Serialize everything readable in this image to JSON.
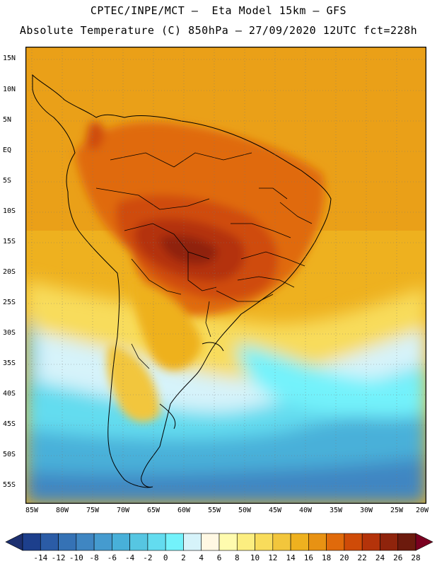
{
  "header": {
    "line1": "CPTEC/INPE/MCT –  Eta Model 15km – GFS",
    "line2": "Absolute Temperature (C) 850hPa – 27/09/2020 12UTC fct=228h"
  },
  "map": {
    "region": "South America",
    "lat_labels": [
      "15N",
      "10N",
      "5N",
      "EQ",
      "5S",
      "10S",
      "15S",
      "20S",
      "25S",
      "30S",
      "35S",
      "40S",
      "45S",
      "50S",
      "55S"
    ],
    "lon_labels": [
      "85W",
      "80W",
      "75W",
      "70W",
      "65W",
      "60W",
      "55W",
      "50W",
      "45W",
      "40W",
      "35W",
      "30W",
      "25W",
      "20W"
    ],
    "grid": "dotted"
  },
  "colorbar": {
    "labels": [
      "-14",
      "-12",
      "-10",
      "-8",
      "-6",
      "-4",
      "-2",
      "0",
      "2",
      "4",
      "6",
      "8",
      "10",
      "12",
      "14",
      "16",
      "18",
      "20",
      "22",
      "24",
      "26",
      "28"
    ],
    "colors": [
      "#1d3f8c",
      "#2b5ca6",
      "#3572b5",
      "#3f86c2",
      "#459bcf",
      "#48b0d9",
      "#56c6e2",
      "#63dcef",
      "#73f2fb",
      "#d6f3fa",
      "#fff8e3",
      "#fffbae",
      "#fcee80",
      "#f8dc5b",
      "#f2c63c",
      "#eeb11f",
      "#e89213",
      "#e06a0b",
      "#cf4b08",
      "#b4330a",
      "#8f240c",
      "#6c1a0d"
    ],
    "under_color": "#1d3070",
    "over_color": "#7a0020"
  }
}
